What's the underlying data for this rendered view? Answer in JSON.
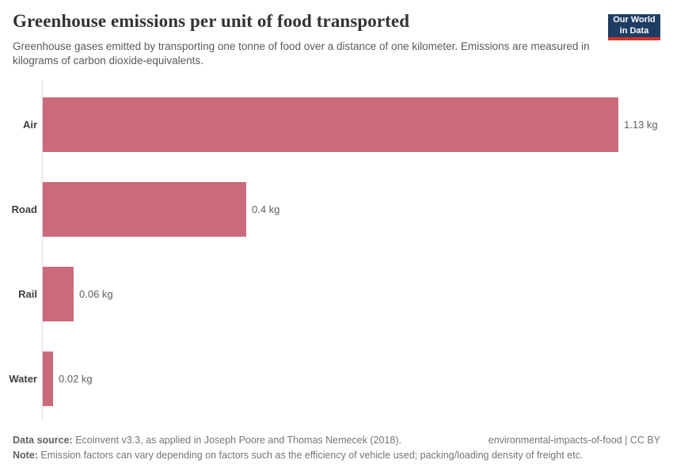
{
  "header": {
    "title": "Greenhouse emissions per unit of food transported",
    "subtitle": "Greenhouse gases emitted by transporting one tonne of food over a distance of one kilometer. Emissions are measured in kilograms of carbon dioxide-equivalents.",
    "logo": {
      "line1": "Our World",
      "line2": "in Data"
    }
  },
  "chart_data": {
    "type": "bar",
    "orientation": "horizontal",
    "title": "Greenhouse emissions per unit of food transported",
    "categories": [
      "Air",
      "Road",
      "Rail",
      "Water"
    ],
    "values": [
      1.13,
      0.4,
      0.06,
      0.02
    ],
    "value_labels": [
      "1.13 kg",
      "0.4 kg",
      "0.06 kg",
      "0.02 kg"
    ],
    "unit": "kg",
    "xlim": [
      0,
      1.13
    ],
    "bar_color": "#cb6a7a",
    "grid": false,
    "legend": "none"
  },
  "footer": {
    "source_label": "Data source:",
    "source_text": " Ecoinvent v3.3, as applied in Joseph Poore and Thomas Nemecek (2018).",
    "attribution": "environmental-impacts-of-food | CC BY",
    "note_label": "Note:",
    "note_text": " Emission factors can vary depending on factors such as the efficiency of vehicle used; packing/loading density of freight etc."
  },
  "colors": {
    "logo_bg": "#1d3d63",
    "logo_accent": "#d0342c",
    "bar": "#cb6a7a",
    "axis": "#dddddd"
  }
}
